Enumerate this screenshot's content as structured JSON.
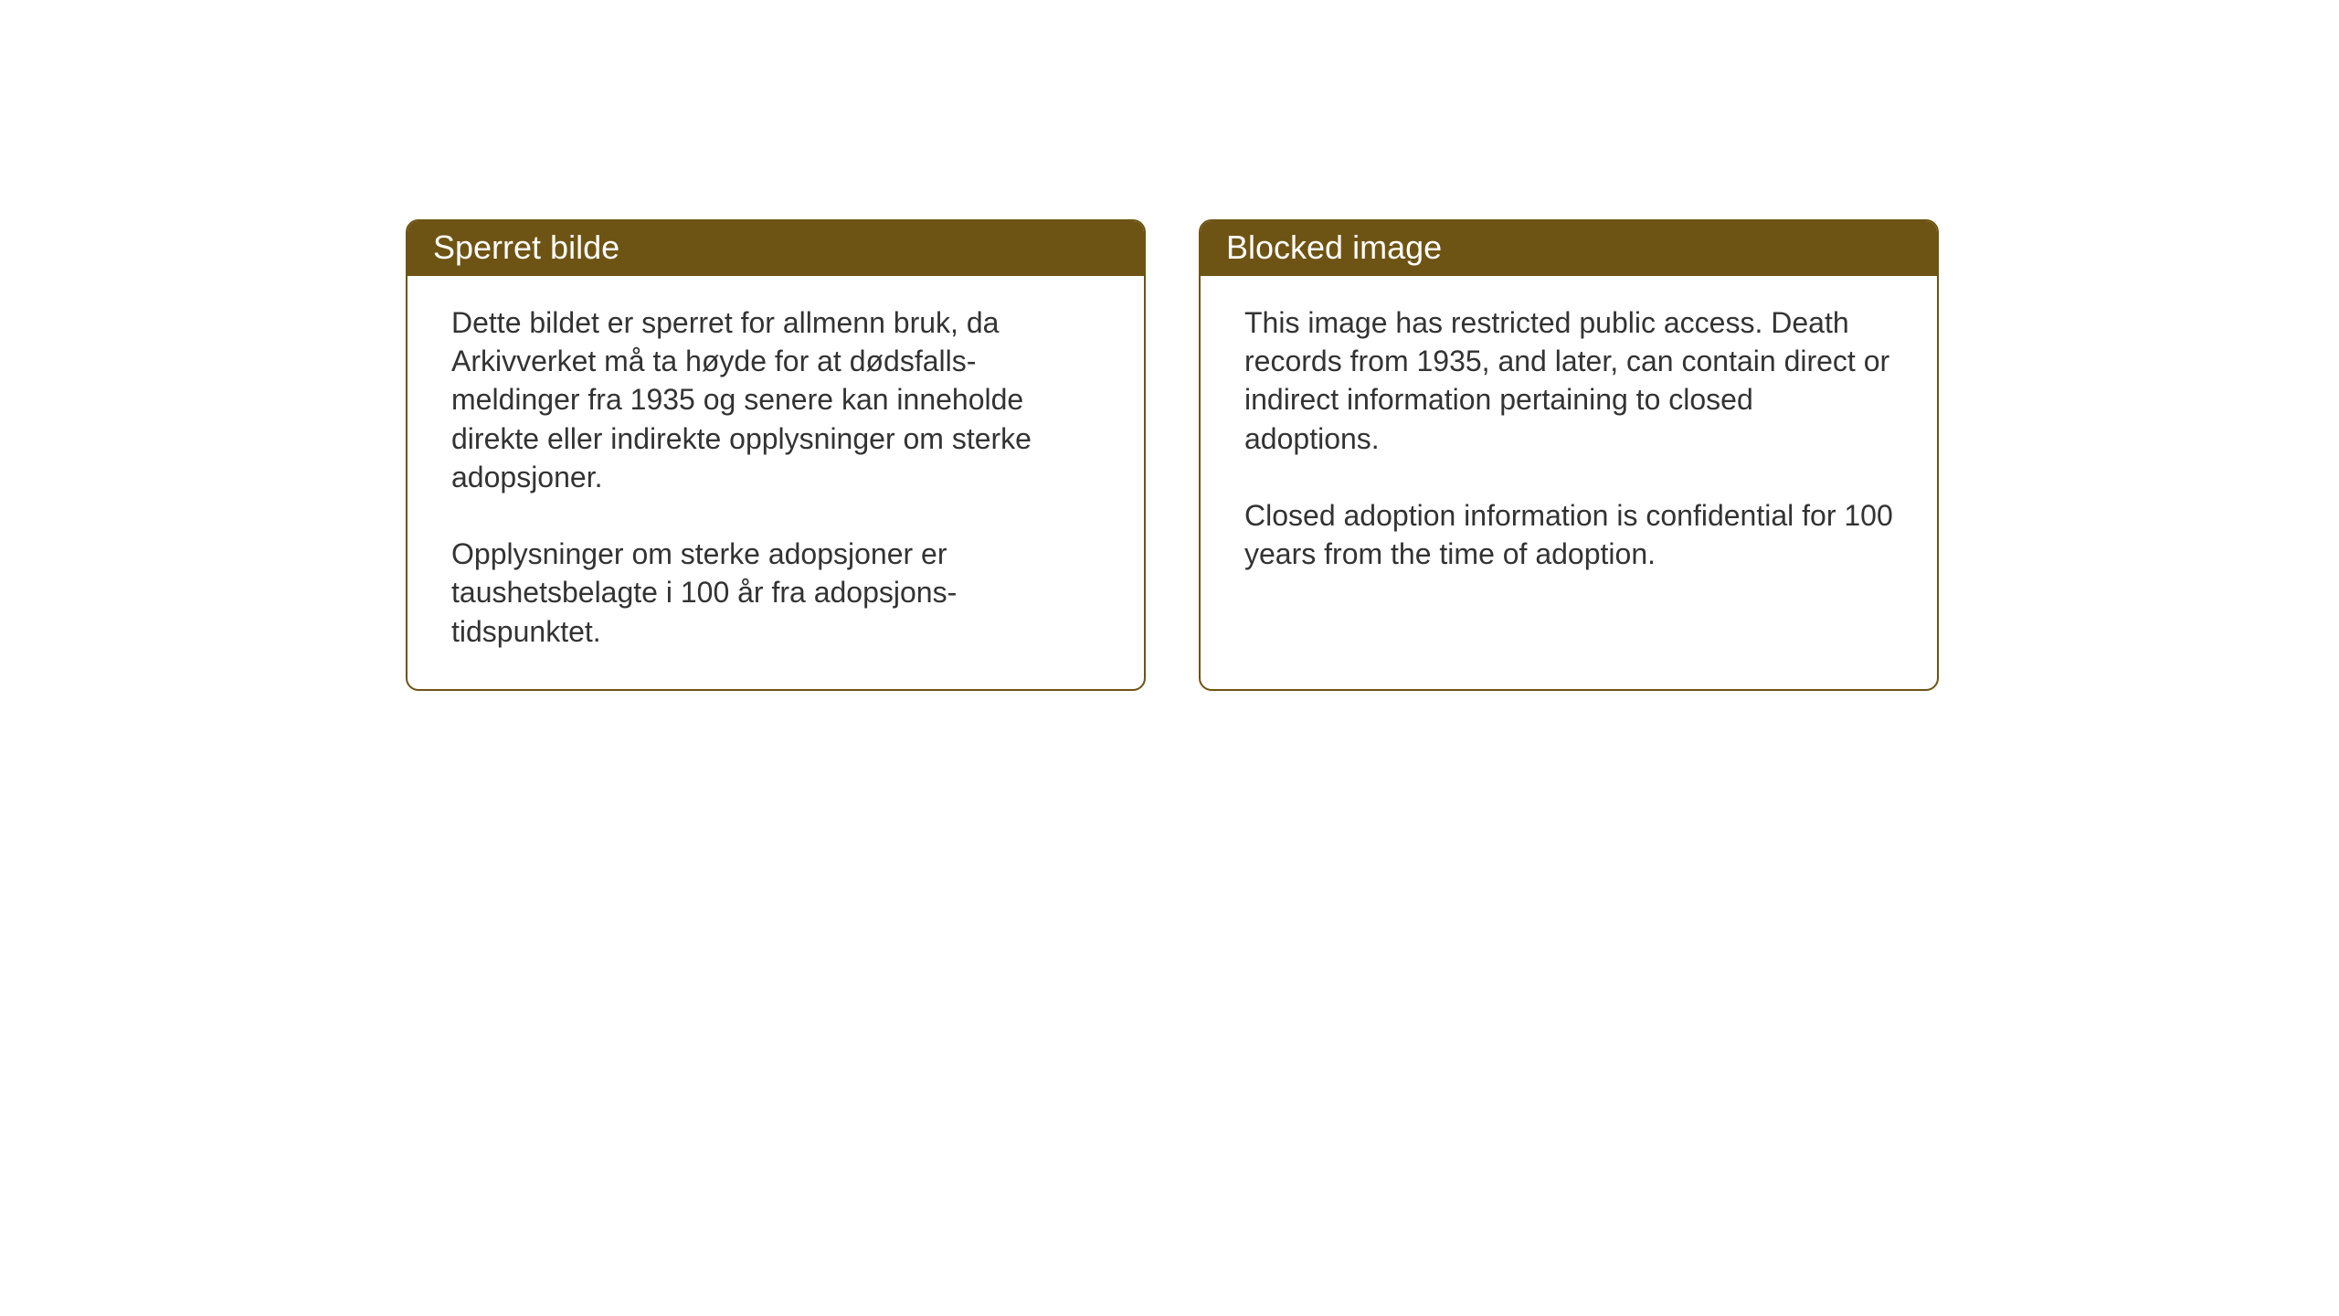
{
  "layout": {
    "background_color": "#ffffff",
    "card_border_color": "#6e5414",
    "card_header_bg": "#6e5414",
    "card_header_text_color": "#ffffff",
    "card_body_text_color": "#333333",
    "card_border_radius": 14,
    "card_border_width": 2,
    "header_fontsize": 36,
    "body_fontsize": 32,
    "body_line_height": 1.32
  },
  "cards": {
    "norwegian": {
      "title": "Sperret bilde",
      "p1": "Dette bildet er sperret for allmenn bruk, da Arkivverket må ta høyde for at dødsfalls-meldinger fra 1935 og senere kan inneholde direkte eller indirekte opplysninger om sterke adopsjoner.",
      "p2": "Opplysninger om sterke adopsjoner er taushetsbelagte i 100 år fra adopsjons-tidspunktet."
    },
    "english": {
      "title": "Blocked image",
      "p1": "This image has restricted public access. Death records from 1935, and later, can contain direct or indirect information pertaining to closed adoptions.",
      "p2": "Closed adoption information is confidential for 100 years from the time of adoption."
    }
  }
}
